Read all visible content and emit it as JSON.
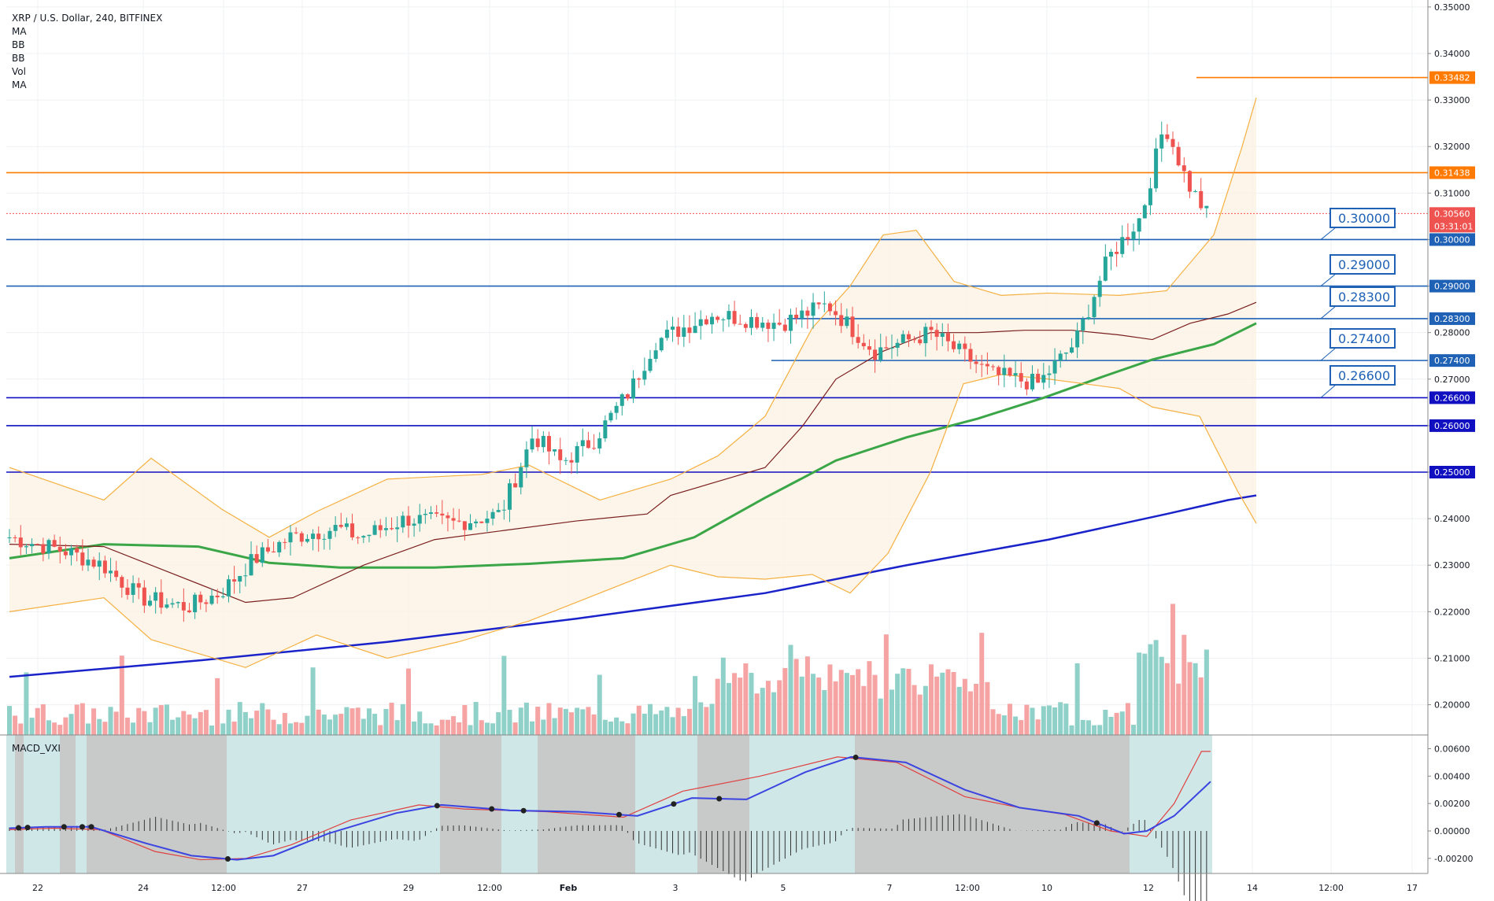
{
  "legend": {
    "title": "XRP / U.S. Dollar, 240, BITFINEX",
    "items": [
      "MA",
      "BB",
      "BB",
      "Vol",
      "MA"
    ]
  },
  "macd_title": "MACD_VXI",
  "colors": {
    "up": "#26a69a",
    "down": "#ef5350",
    "vol_up": "#8fd0c8",
    "vol_down": "#f5a3a3",
    "ma_green": "#3aa647",
    "ma_blue": "#1a23c9",
    "ma_brown": "#7a1f1f",
    "bb_outer": "#f5b041",
    "bb_inner": "#3a9a8a",
    "orange": "#ff7a00",
    "line_blue": "#1e61b5",
    "navy": "#1010c0",
    "macd_line": "#3b44e0",
    "signal_line": "#e04040",
    "shade_grey": "#c6c6c6",
    "shade_teal": "#cfe7e7"
  },
  "chart_data": {
    "type": "candlestick",
    "symbol": "XRP / U.S. Dollar",
    "interval": "240",
    "exchange": "BITFINEX",
    "price_axis": {
      "ticks": [
        "0.35000",
        "0.34000",
        "0.33000",
        "0.32000",
        "0.31000",
        "0.30000",
        "0.29000",
        "0.28000",
        "0.27000",
        "0.26000",
        "0.25000",
        "0.24000",
        "0.23000",
        "0.22000",
        "0.21000",
        "0.20000"
      ],
      "range": [
        0.1935,
        0.3515
      ]
    },
    "time_axis": {
      "labels": [
        "22",
        "24",
        "12:00",
        "27",
        "29",
        "12:00",
        "Feb",
        "3",
        "5",
        "7",
        "12:00",
        "10",
        "12",
        "14",
        "12:00",
        "17"
      ]
    },
    "current_price": "0.30560",
    "countdown": "03:31:01",
    "horizontal_lines": [
      {
        "price": 0.33482,
        "label": "0.33482",
        "color": "orange",
        "start": "right"
      },
      {
        "price": 0.31438,
        "label": "0.31438",
        "color": "orange",
        "start": "left"
      },
      {
        "price": 0.3,
        "label": "0.30000",
        "color": "line_blue",
        "start": "left"
      },
      {
        "price": 0.29,
        "label": "0.29000",
        "color": "line_blue",
        "start": "left"
      },
      {
        "price": 0.283,
        "label": "0.28300",
        "color": "line_blue",
        "start": "mid"
      },
      {
        "price": 0.274,
        "label": "0.27400",
        "color": "line_blue",
        "start": "mid"
      },
      {
        "price": 0.266,
        "label": "0.26600",
        "color": "navy",
        "start": "left"
      },
      {
        "price": 0.26,
        "label": "0.26000",
        "color": "navy",
        "start": "left"
      },
      {
        "price": 0.25,
        "label": "0.25000",
        "color": "navy",
        "start": "left"
      }
    ],
    "callouts": [
      "0.30000",
      "0.29000",
      "0.28300",
      "0.27400",
      "0.26600"
    ],
    "series": [
      {
        "name": "MA",
        "color": "ma_green",
        "points": [
          [
            0,
            0.2315
          ],
          [
            20,
            0.2345
          ],
          [
            40,
            0.234
          ],
          [
            55,
            0.2305
          ],
          [
            70,
            0.2295
          ],
          [
            90,
            0.2295
          ],
          [
            110,
            0.2303
          ],
          [
            130,
            0.2315
          ],
          [
            145,
            0.236
          ],
          [
            160,
            0.2445
          ],
          [
            175,
            0.2525
          ],
          [
            190,
            0.2575
          ],
          [
            205,
            0.2615
          ],
          [
            219,
            0.266
          ],
          [
            232,
            0.2707
          ],
          [
            242,
            0.2742
          ],
          [
            255,
            0.2775
          ],
          [
            264,
            0.282
          ]
        ]
      },
      {
        "name": "MA",
        "color": "ma_blue",
        "points": [
          [
            0,
            0.206
          ],
          [
            40,
            0.2095
          ],
          [
            80,
            0.2135
          ],
          [
            120,
            0.2185
          ],
          [
            160,
            0.224
          ],
          [
            190,
            0.23
          ],
          [
            220,
            0.2355
          ],
          [
            245,
            0.241
          ],
          [
            258,
            0.244
          ],
          [
            264,
            0.245
          ]
        ]
      },
      {
        "name": "BB",
        "color": "ma_brown",
        "points": [
          [
            0,
            0.2345
          ],
          [
            20,
            0.234
          ],
          [
            35,
            0.228
          ],
          [
            50,
            0.222
          ],
          [
            60,
            0.223
          ],
          [
            75,
            0.23
          ],
          [
            90,
            0.2355
          ],
          [
            105,
            0.2375
          ],
          [
            120,
            0.2395
          ],
          [
            135,
            0.241
          ],
          [
            140,
            0.245
          ],
          [
            150,
            0.248
          ],
          [
            160,
            0.251
          ],
          [
            168,
            0.26
          ],
          [
            175,
            0.27
          ],
          [
            185,
            0.276
          ],
          [
            195,
            0.28
          ],
          [
            205,
            0.28
          ],
          [
            215,
            0.2805
          ],
          [
            225,
            0.2805
          ],
          [
            235,
            0.2795
          ],
          [
            242,
            0.2785
          ],
          [
            250,
            0.282
          ],
          [
            258,
            0.284
          ],
          [
            264,
            0.2865
          ]
        ]
      },
      {
        "name": "BB",
        "color": "bb_outer",
        "points": [
          [
            0,
            0.251
          ],
          [
            20,
            0.244
          ],
          [
            30,
            0.253
          ],
          [
            45,
            0.242
          ],
          [
            55,
            0.236
          ],
          [
            65,
            0.2415
          ],
          [
            80,
            0.2485
          ],
          [
            100,
            0.2495
          ],
          [
            110,
            0.2515
          ],
          [
            125,
            0.244
          ],
          [
            140,
            0.2485
          ],
          [
            150,
            0.2535
          ],
          [
            160,
            0.262
          ],
          [
            170,
            0.281
          ],
          [
            178,
            0.29
          ],
          [
            185,
            0.301
          ],
          [
            192,
            0.302
          ],
          [
            200,
            0.291
          ],
          [
            210,
            0.288
          ],
          [
            220,
            0.2885
          ],
          [
            235,
            0.288
          ],
          [
            245,
            0.289
          ],
          [
            255,
            0.301
          ],
          [
            261,
            0.32
          ],
          [
            264,
            0.3305
          ]
        ]
      },
      {
        "name": "BB",
        "color": "bb_outer",
        "points": [
          [
            0,
            0.22
          ],
          [
            20,
            0.223
          ],
          [
            30,
            0.214
          ],
          [
            40,
            0.211
          ],
          [
            50,
            0.208
          ],
          [
            65,
            0.215
          ],
          [
            80,
            0.21
          ],
          [
            95,
            0.2135
          ],
          [
            110,
            0.218
          ],
          [
            125,
            0.224
          ],
          [
            140,
            0.23
          ],
          [
            150,
            0.2275
          ],
          [
            160,
            0.227
          ],
          [
            170,
            0.228
          ],
          [
            178,
            0.224
          ],
          [
            186,
            0.2325
          ],
          [
            195,
            0.25
          ],
          [
            202,
            0.269
          ],
          [
            210,
            0.271
          ],
          [
            220,
            0.27
          ],
          [
            235,
            0.268
          ],
          [
            242,
            0.264
          ],
          [
            252,
            0.262
          ],
          [
            260,
            0.246
          ],
          [
            264,
            0.239
          ]
        ]
      }
    ],
    "volume_panel": {
      "label": "Vol"
    },
    "macd_panel": {
      "name": "MACD_VXI",
      "ticks": [
        "0.00600",
        "0.00400",
        "0.00200",
        "0.00000",
        "-0.00200"
      ],
      "range": [
        -0.0031,
        0.007
      ],
      "macd_line": [
        [
          0,
          0.0002
        ],
        [
          8,
          0.0003
        ],
        [
          18,
          0.0003
        ],
        [
          30,
          -0.0009
        ],
        [
          40,
          -0.0018
        ],
        [
          50,
          -0.0021
        ],
        [
          58,
          -0.0018
        ],
        [
          70,
          -0.0002
        ],
        [
          85,
          0.0013
        ],
        [
          95,
          0.0019
        ],
        [
          110,
          0.0015
        ],
        [
          125,
          0.0014
        ],
        [
          138,
          0.0011
        ],
        [
          150,
          0.0024
        ],
        [
          162,
          0.0023
        ],
        [
          175,
          0.0043
        ],
        [
          185,
          0.0054
        ],
        [
          197,
          0.005
        ],
        [
          210,
          0.003
        ],
        [
          222,
          0.0017
        ],
        [
          235,
          0.0011
        ],
        [
          245,
          -0.0002
        ],
        [
          250,
          0.0
        ],
        [
          256,
          0.0011
        ],
        [
          264,
          0.0036
        ]
      ],
      "signal_line": [
        [
          0,
          0.0001
        ],
        [
          10,
          0.0002
        ],
        [
          20,
          0.0001
        ],
        [
          32,
          -0.0015
        ],
        [
          42,
          -0.0021
        ],
        [
          52,
          -0.002
        ],
        [
          62,
          -0.001
        ],
        [
          75,
          0.0008
        ],
        [
          90,
          0.0019
        ],
        [
          100,
          0.0016
        ],
        [
          118,
          0.0014
        ],
        [
          135,
          0.001
        ],
        [
          148,
          0.0029
        ],
        [
          165,
          0.004
        ],
        [
          182,
          0.0054
        ],
        [
          195,
          0.005
        ],
        [
          210,
          0.0025
        ],
        [
          222,
          0.0017
        ],
        [
          232,
          0.0012
        ],
        [
          242,
          0.0
        ],
        [
          250,
          -0.0004
        ],
        [
          256,
          0.002
        ],
        [
          262,
          0.0058
        ],
        [
          264,
          0.0058
        ]
      ],
      "cross_markers": [
        2,
        4,
        12,
        16,
        18,
        48,
        94,
        106,
        113,
        134,
        146,
        156,
        186,
        239
      ]
    }
  }
}
